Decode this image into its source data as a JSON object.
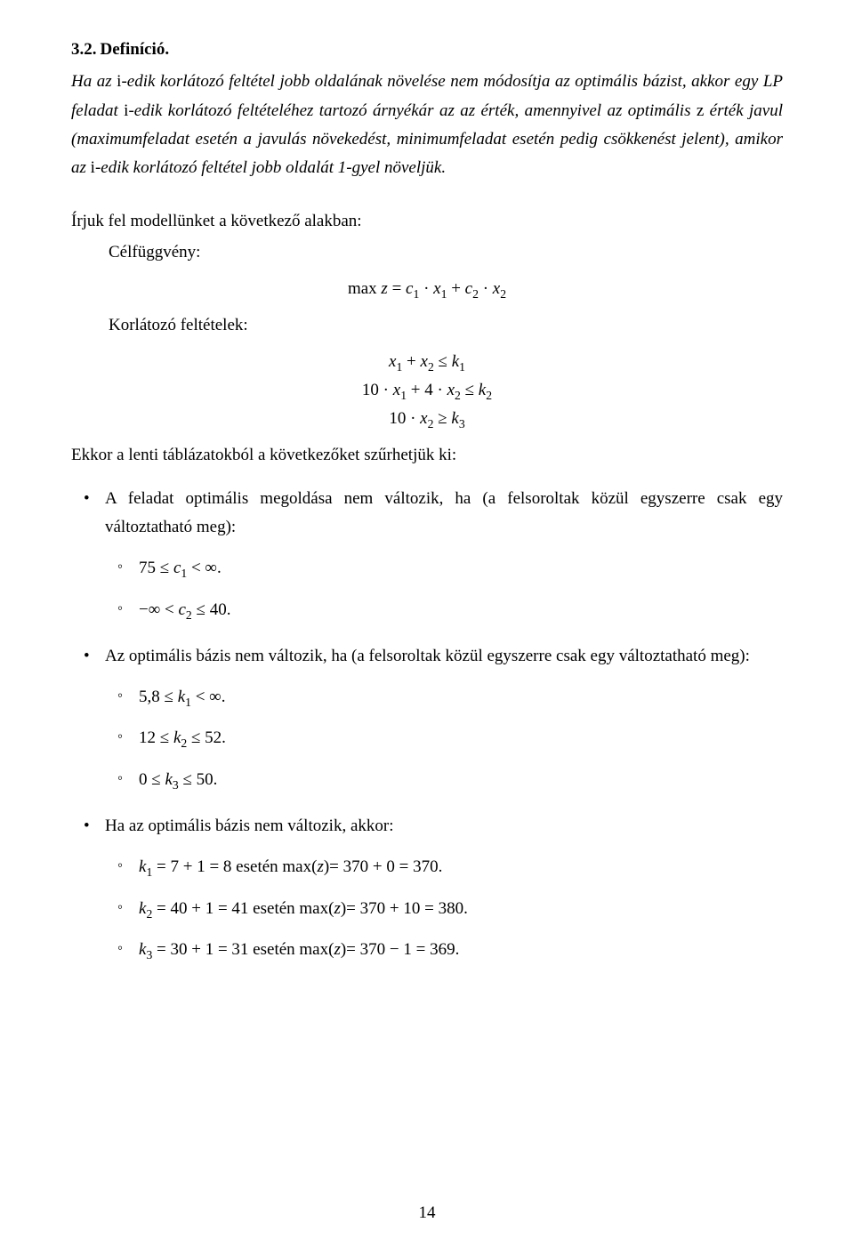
{
  "section": {
    "number": "3.2.",
    "title": "Definíció."
  },
  "definition": "Ha az i-edik korlátozó feltétel jobb oldalának növelése nem módosítja az optimális bázist, akkor egy LP feladat i-edik korlátozó feltételéhez tartozó árnyékár az az érték, amennyivel az optimális z érték javul (maximumfeladat esetén a javulás növekedést, minimumfeladat esetén pedig csökkenést jelent), amikor az i-edik korlátozó feltétel jobb oldalát 1-gyel növeljük.",
  "model_intro": "Írjuk fel modellünket a következő alakban:",
  "objective_label": "Célfüggvény:",
  "objective_formula": "max z = c₁ · x₁ + c₂ · x₂",
  "constraints_label": "Korlátozó feltételek:",
  "constraint_1": "x₁ + x₂ ≤ k₁",
  "constraint_2": "10 · x₁ + 4 · x₂ ≤ k₂",
  "constraint_3": "10 · x₂ ≥ k₃",
  "tables_intro": "Ekkor a lenti táblázatokból a következőket szűrhetjük ki:",
  "bullets": {
    "b1": "A feladat optimális megoldása nem változik, ha (a felsoroltak közül egyszerre csak egy változtatható meg):",
    "b1_s1": "75 ≤ c₁ < ∞.",
    "b1_s2": "−∞ < c₂ ≤ 40.",
    "b2": "Az optimális bázis nem változik, ha (a felsoroltak közül egyszerre csak egy változtatható meg):",
    "b2_s1": "5,8 ≤ k₁ < ∞.",
    "b2_s2": "12 ≤ k₂ ≤ 52.",
    "b2_s3": "0 ≤ k₃ ≤ 50.",
    "b3": "Ha az optimális bázis nem változik, akkor:",
    "b3_s1": "k₁ = 7 + 1 = 8 esetén max(z)= 370 + 0 = 370.",
    "b3_s2": "k₂ = 40 + 1 = 41 esetén max(z)= 370 + 10 = 380.",
    "b3_s3": "k₃ = 30 + 1 = 31 esetén max(z)= 370 − 1 = 369."
  },
  "pagenum": "14"
}
